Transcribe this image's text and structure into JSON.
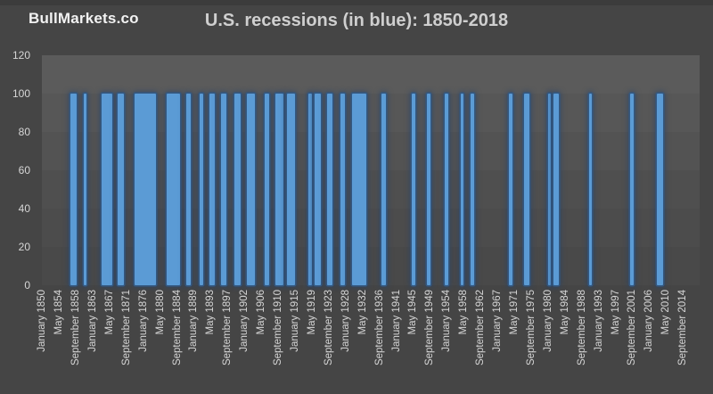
{
  "header": {
    "logo": "BullMarkets.co",
    "title": "U.S. recessions (in blue): 1850-2018"
  },
  "chart_data": {
    "type": "bar",
    "title": "U.S. recessions (in blue): 1850-2018",
    "frequency": "monthly",
    "x_range": {
      "start": "1850-01",
      "end": "2018-12"
    },
    "ylim": [
      0,
      120
    ],
    "y_ticks": [
      0,
      20,
      40,
      60,
      80,
      100,
      120
    ],
    "recession_value": 100,
    "non_recession_value": 0,
    "x_tick_interval_months": 52,
    "x_tick_labels": [
      "January 1850",
      "May 1854",
      "September 1858",
      "January 1863",
      "May 1867",
      "September 1871",
      "January 1876",
      "May 1880",
      "September 1884",
      "January 1889",
      "May 1893",
      "September 1897",
      "January 1902",
      "May 1906",
      "September 1910",
      "January 1915",
      "May 1919",
      "September 1923",
      "January 1928",
      "May 1932",
      "September 1936",
      "January 1941",
      "May 1945",
      "September 1949",
      "January 1954",
      "May 1958",
      "September 1962",
      "January 1967",
      "May 1971",
      "September 1975",
      "January 1980",
      "May 1984",
      "September 1988",
      "January 1993",
      "May 1997",
      "September 2001",
      "January 2006",
      "May 2010",
      "September 2014"
    ],
    "recessions": [
      {
        "start": "1857-06",
        "end": "1858-12"
      },
      {
        "start": "1860-10",
        "end": "1861-06"
      },
      {
        "start": "1865-04",
        "end": "1867-12"
      },
      {
        "start": "1869-06",
        "end": "1870-12"
      },
      {
        "start": "1873-10",
        "end": "1879-03"
      },
      {
        "start": "1882-03",
        "end": "1885-05"
      },
      {
        "start": "1887-03",
        "end": "1888-04"
      },
      {
        "start": "1890-07",
        "end": "1891-05"
      },
      {
        "start": "1893-01",
        "end": "1894-06"
      },
      {
        "start": "1895-12",
        "end": "1897-06"
      },
      {
        "start": "1899-06",
        "end": "1900-12"
      },
      {
        "start": "1902-09",
        "end": "1904-08"
      },
      {
        "start": "1907-05",
        "end": "1908-06"
      },
      {
        "start": "1910-01",
        "end": "1912-01"
      },
      {
        "start": "1913-01",
        "end": "1914-12"
      },
      {
        "start": "1918-08",
        "end": "1919-03"
      },
      {
        "start": "1920-01",
        "end": "1921-07"
      },
      {
        "start": "1923-05",
        "end": "1924-07"
      },
      {
        "start": "1926-10",
        "end": "1927-11"
      },
      {
        "start": "1929-08",
        "end": "1933-03"
      },
      {
        "start": "1937-05",
        "end": "1938-06"
      },
      {
        "start": "1945-02",
        "end": "1945-10"
      },
      {
        "start": "1948-11",
        "end": "1949-10"
      },
      {
        "start": "1953-07",
        "end": "1954-05"
      },
      {
        "start": "1957-08",
        "end": "1958-04"
      },
      {
        "start": "1960-04",
        "end": "1961-02"
      },
      {
        "start": "1969-12",
        "end": "1970-11"
      },
      {
        "start": "1973-11",
        "end": "1975-03"
      },
      {
        "start": "1980-01",
        "end": "1980-07"
      },
      {
        "start": "1981-07",
        "end": "1982-11"
      },
      {
        "start": "1990-07",
        "end": "1991-03"
      },
      {
        "start": "2001-03",
        "end": "2001-11"
      },
      {
        "start": "2007-12",
        "end": "2009-06"
      }
    ],
    "colors": {
      "bar_fill": "#5B9BD5",
      "bar_glow": "#2E5A84",
      "background": "#454545",
      "plot_top": "#5B5B5B",
      "plot_bottom": "#494949",
      "axis_text": "#D6D6D6",
      "title_text": "#CFCFCF",
      "logo_text": "#F2F2F2"
    },
    "legend": "none",
    "grid": "off"
  }
}
